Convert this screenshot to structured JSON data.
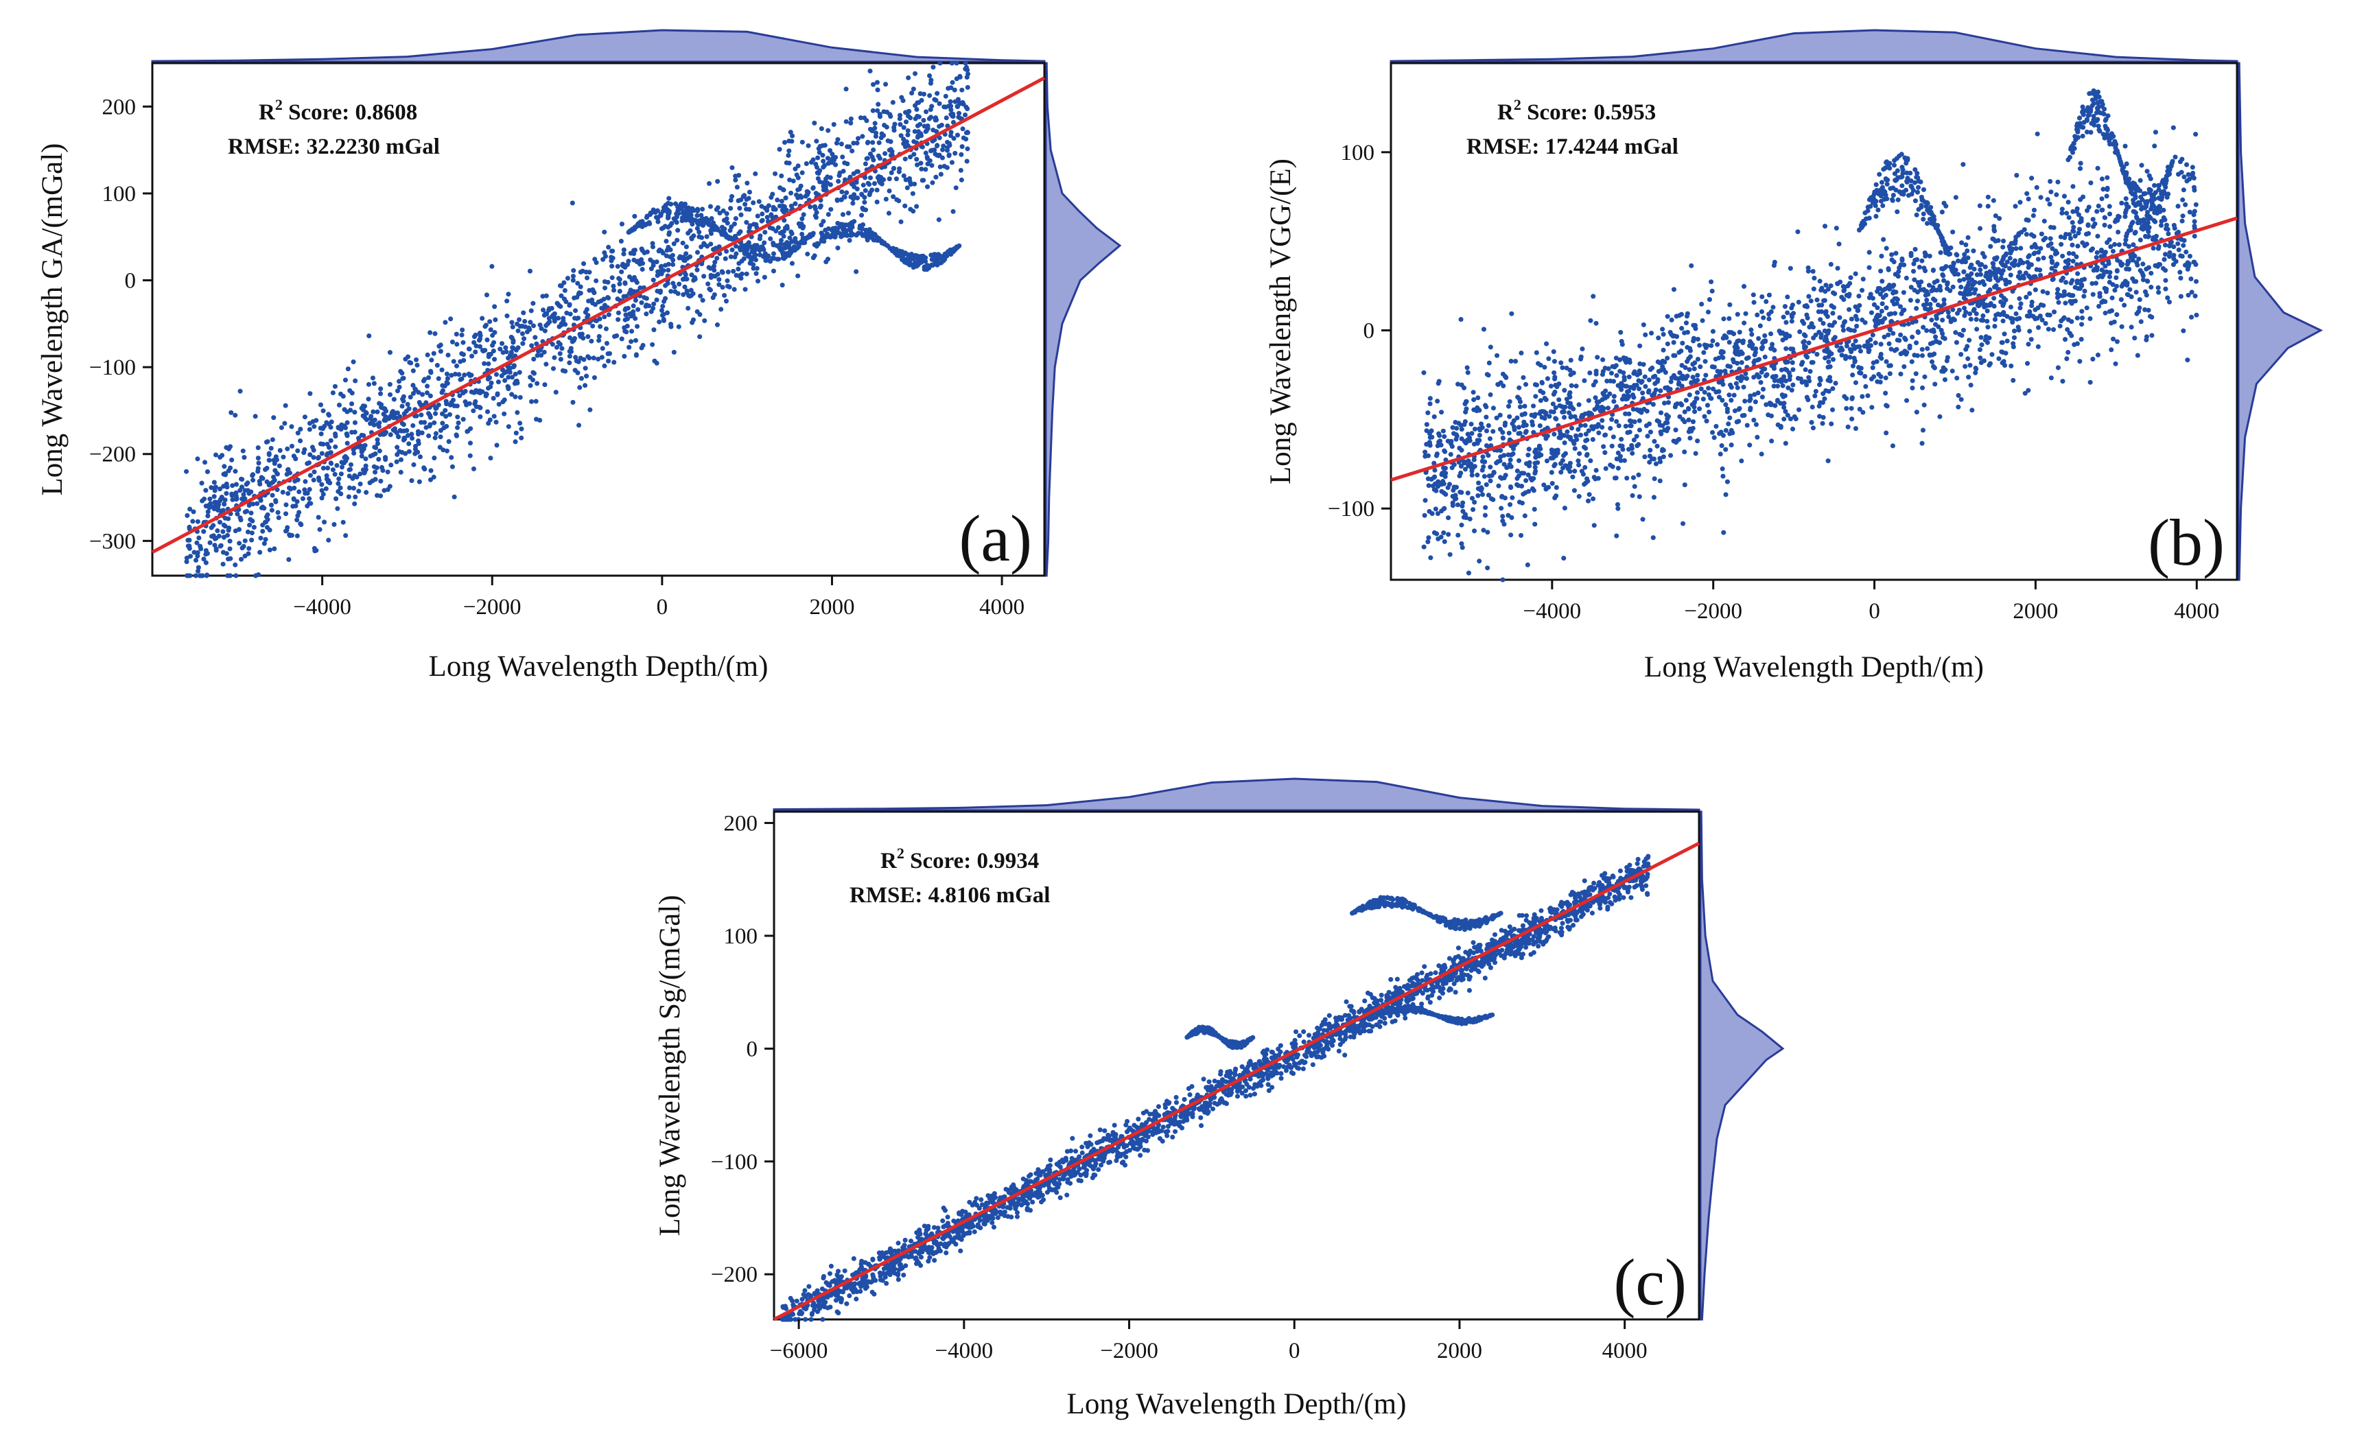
{
  "figure": {
    "colors": {
      "scatter": "#1f4fa8",
      "fit_line": "#e02a2a",
      "marginal_fill": "#9aa4d8",
      "marginal_stroke": "#2a3c98",
      "axis": "#111111"
    }
  },
  "chart_data": [
    {
      "id": "a",
      "type": "scatter",
      "panel_label": "(a)",
      "xlabel": "Long Wavelength Depth/(m)",
      "ylabel": "Long Wavelength GA/(mGal)",
      "xlim": [
        -6000,
        4500
      ],
      "ylim": [
        -340,
        250
      ],
      "x_ticks": [
        -4000,
        -2000,
        0,
        2000,
        4000
      ],
      "x_tick_labels": [
        "−4000",
        "−2000",
        "0",
        "2000",
        "4000"
      ],
      "y_ticks": [
        -300,
        -200,
        -100,
        0,
        100,
        200
      ],
      "y_tick_labels": [
        "−300",
        "−200",
        "−100",
        "0",
        "100",
        "200"
      ],
      "stats": {
        "r2_prefix": "R",
        "r2_sup": "2",
        "r2_text": " Score: 0.8608",
        "rmse_text": "RMSE: 32.2230 mGal"
      },
      "fit_line": [
        [
          -6000,
          -313
        ],
        [
          4500,
          233
        ]
      ],
      "point_cloud": {
        "x_range": [
          -5600,
          3600
        ],
        "slope": 0.0535,
        "intercept": 3,
        "spread": 38,
        "count": 2200,
        "seed": 11
      },
      "outlier_arcs": [
        {
          "x": [
            1800,
            3500
          ],
          "y_center": 40,
          "amplitude": 28
        },
        {
          "x": [
            -400,
            1800
          ],
          "y_center": 55,
          "amplitude": 35
        }
      ],
      "x_marginal": [
        [
          -6000,
          0.02
        ],
        [
          -5000,
          0.04
        ],
        [
          -4000,
          0.08
        ],
        [
          -3000,
          0.16
        ],
        [
          -2000,
          0.4
        ],
        [
          -1000,
          0.85
        ],
        [
          0,
          1.0
        ],
        [
          1000,
          0.95
        ],
        [
          2000,
          0.45
        ],
        [
          3000,
          0.15
        ],
        [
          4000,
          0.05
        ],
        [
          4500,
          0.02
        ]
      ],
      "y_marginal": [
        [
          -340,
          0.01
        ],
        [
          -300,
          0.03
        ],
        [
          -250,
          0.04
        ],
        [
          -200,
          0.06
        ],
        [
          -150,
          0.08
        ],
        [
          -100,
          0.11
        ],
        [
          -50,
          0.2
        ],
        [
          0,
          0.42
        ],
        [
          20,
          0.65
        ],
        [
          40,
          0.9
        ],
        [
          60,
          0.62
        ],
        [
          80,
          0.4
        ],
        [
          100,
          0.2
        ],
        [
          150,
          0.06
        ],
        [
          200,
          0.02
        ],
        [
          250,
          0.01
        ]
      ]
    },
    {
      "id": "b",
      "type": "scatter",
      "panel_label": "(b)",
      "xlabel": "Long Wavelength Depth/(m)",
      "ylabel": "Long Wavelength VGG/(E)",
      "xlim": [
        -6000,
        4500
      ],
      "ylim": [
        -140,
        150
      ],
      "x_ticks": [
        -4000,
        -2000,
        0,
        2000,
        4000
      ],
      "x_tick_labels": [
        "−4000",
        "−2000",
        "0",
        "2000",
        "4000"
      ],
      "y_ticks": [
        -100,
        0,
        100
      ],
      "y_tick_labels": [
        "−100",
        "0",
        "100"
      ],
      "stats": {
        "r2_prefix": "R",
        "r2_sup": "2",
        "r2_text": " Score: 0.5953",
        "rmse_text": "RMSE: 17.4244 mGal"
      },
      "fit_line": [
        [
          -6000,
          -84
        ],
        [
          4500,
          63
        ]
      ],
      "point_cloud": {
        "x_range": [
          -5600,
          4000
        ],
        "slope": 0.014,
        "intercept": 0,
        "spread": 24,
        "count": 2600,
        "seed": 23
      },
      "outlier_arcs": [
        {
          "x": [
            2400,
            3700
          ],
          "y_center": 95,
          "amplitude": 40
        },
        {
          "x": [
            -200,
            1800
          ],
          "y_center": 55,
          "amplitude": 45
        }
      ],
      "x_marginal": [
        [
          -6000,
          0.02
        ],
        [
          -5000,
          0.05
        ],
        [
          -4000,
          0.08
        ],
        [
          -3000,
          0.16
        ],
        [
          -2000,
          0.42
        ],
        [
          -1000,
          0.9
        ],
        [
          0,
          1.0
        ],
        [
          1000,
          0.93
        ],
        [
          2000,
          0.42
        ],
        [
          3000,
          0.15
        ],
        [
          4000,
          0.05
        ],
        [
          4500,
          0.02
        ]
      ],
      "y_marginal": [
        [
          -140,
          0.01
        ],
        [
          -100,
          0.03
        ],
        [
          -60,
          0.08
        ],
        [
          -30,
          0.22
        ],
        [
          -10,
          0.6
        ],
        [
          0,
          1.0
        ],
        [
          10,
          0.55
        ],
        [
          30,
          0.2
        ],
        [
          60,
          0.08
        ],
        [
          100,
          0.03
        ],
        [
          150,
          0.01
        ]
      ]
    },
    {
      "id": "c",
      "type": "scatter",
      "panel_label": "(c)",
      "xlabel": "Long Wavelength Depth/(m)",
      "ylabel": "Long Wavelength Sg/(mGal)",
      "xlim": [
        -6300,
        4900
      ],
      "ylim": [
        -240,
        210
      ],
      "x_ticks": [
        -6000,
        -4000,
        -2000,
        0,
        2000,
        4000
      ],
      "x_tick_labels": [
        "−6000",
        "−4000",
        "−2000",
        "0",
        "2000",
        "4000"
      ],
      "y_ticks": [
        -200,
        -100,
        0,
        100,
        200
      ],
      "y_tick_labels": [
        "−200",
        "−100",
        "0",
        "100",
        "200"
      ],
      "stats": {
        "r2_prefix": "R",
        "r2_sup": "2",
        "r2_text": " Score: 0.9934",
        "rmse_text": "RMSE: 4.8106 mGal"
      },
      "fit_line": [
        [
          -6300,
          -240
        ],
        [
          4900,
          182
        ]
      ],
      "point_cloud": {
        "x_range": [
          -6200,
          4300
        ],
        "slope": 0.0378,
        "intercept": -5,
        "spread": 8,
        "count": 2400,
        "seed": 37
      },
      "outlier_arcs": [
        {
          "x": [
            1000,
            2400
          ],
          "y_center": 30,
          "amplitude": 8
        },
        {
          "x": [
            700,
            2500
          ],
          "y_center": 120,
          "amplitude": 15
        },
        {
          "x": [
            -1300,
            -500
          ],
          "y_center": 10,
          "amplitude": 10
        }
      ],
      "x_marginal": [
        [
          -6300,
          0.03
        ],
        [
          -5000,
          0.05
        ],
        [
          -4000,
          0.08
        ],
        [
          -3000,
          0.16
        ],
        [
          -2000,
          0.42
        ],
        [
          -1000,
          0.88
        ],
        [
          0,
          1.0
        ],
        [
          1000,
          0.9
        ],
        [
          2000,
          0.4
        ],
        [
          3000,
          0.14
        ],
        [
          4000,
          0.05
        ],
        [
          4900,
          0.02
        ]
      ],
      "y_marginal": [
        [
          -240,
          0.02
        ],
        [
          -200,
          0.05
        ],
        [
          -150,
          0.1
        ],
        [
          -120,
          0.14
        ],
        [
          -80,
          0.2
        ],
        [
          -50,
          0.3
        ],
        [
          -30,
          0.55
        ],
        [
          -10,
          0.8
        ],
        [
          0,
          1.0
        ],
        [
          15,
          0.75
        ],
        [
          30,
          0.45
        ],
        [
          60,
          0.15
        ],
        [
          100,
          0.06
        ],
        [
          150,
          0.02
        ],
        [
          210,
          0.01
        ]
      ]
    }
  ]
}
